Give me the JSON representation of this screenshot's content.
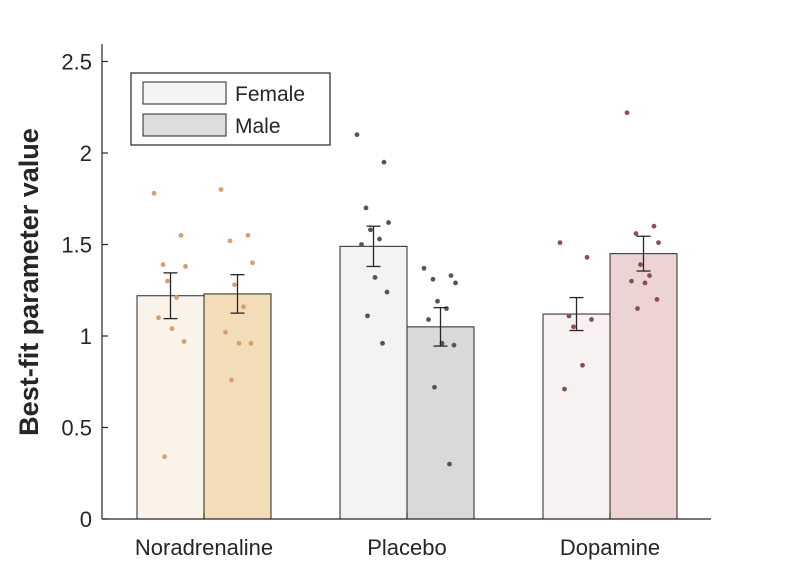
{
  "chart_data": {
    "type": "bar",
    "categories": [
      "Noradrenaline",
      "Placebo",
      "Dopamine"
    ],
    "ylabel": "Best-fit parameter value",
    "xlabel": "",
    "ylim": [
      0,
      2.6
    ],
    "yticks": [
      "0",
      "0.5",
      "1",
      "1.5",
      "2",
      "2.5"
    ],
    "grid": false,
    "legend_position": "top-left",
    "series": [
      {
        "name": "Female",
        "values": [
          1.22,
          1.49,
          1.12
        ],
        "errors": [
          0.125,
          0.11,
          0.09
        ],
        "fill_colors": [
          "#faf3ea",
          "#f3f3f3",
          "#f7f1f1"
        ],
        "legend_color": "#f4f4f4",
        "points": [
          [
            1.78,
            1.55,
            1.39,
            1.38,
            1.3,
            1.21,
            1.1,
            1.04,
            0.97,
            0.34
          ],
          [
            2.1,
            1.95,
            1.7,
            1.62,
            1.58,
            1.53,
            1.5,
            1.32,
            1.24,
            1.11,
            0.96
          ],
          [
            1.51,
            1.43,
            1.11,
            1.09,
            1.05,
            0.84,
            0.71
          ]
        ],
        "point_colors": [
          "#d4a06c",
          "#555555",
          "#8c4c58"
        ]
      },
      {
        "name": "Male",
        "values": [
          1.23,
          1.05,
          1.45
        ],
        "errors": [
          0.105,
          0.105,
          0.095
        ],
        "fill_colors": [
          "#f3ddb9",
          "#d9d9d9",
          "#ecd4d4"
        ],
        "legend_color": "#dddddd",
        "points": [
          [
            1.8,
            1.55,
            1.52,
            1.4,
            1.28,
            1.16,
            1.02,
            0.96,
            0.96,
            0.76
          ],
          [
            1.37,
            1.33,
            1.31,
            1.29,
            1.19,
            1.15,
            1.09,
            0.96,
            0.95,
            0.72,
            0.3
          ],
          [
            2.22,
            1.6,
            1.56,
            1.51,
            1.39,
            1.33,
            1.3,
            1.29,
            1.2,
            1.15
          ]
        ],
        "point_colors": [
          "#d4a06c",
          "#555555",
          "#8c4c58"
        ]
      }
    ]
  }
}
